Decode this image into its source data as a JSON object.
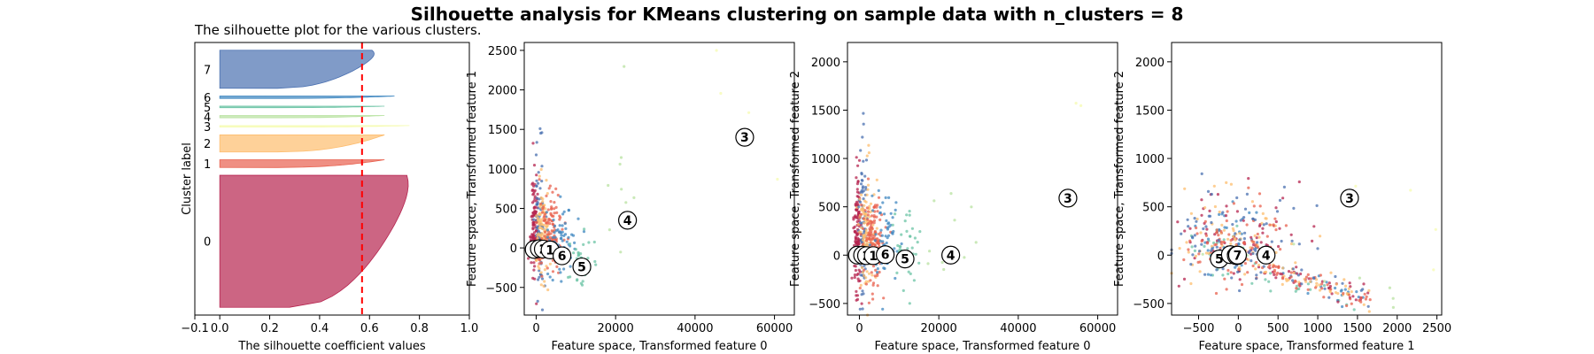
{
  "suptitle": "Silhouette analysis for KMeans clustering on sample data with n_clusters = 8",
  "colors": {
    "c0": "#b6244f",
    "c1": "#e8604e",
    "c2": "#fdbd6e",
    "c3": "#f5fbb0",
    "c4": "#b8e2a0",
    "c5": "#6cc4a5",
    "c6": "#3f87c0",
    "c7": "#4a70b0",
    "avg_line": "#ff0000"
  },
  "chart_data": [
    {
      "type": "area",
      "title": "The silhouette plot for the various clusters.",
      "xlabel": "The silhouette coefficient values",
      "ylabel": "Cluster label",
      "xlim": [
        -0.1,
        1.0
      ],
      "xticks": [
        "−0.1",
        "0.0",
        "0.2",
        "0.4",
        "0.6",
        "0.8",
        "1.0"
      ],
      "average_silhouette": 0.57,
      "clusters": [
        {
          "label": "0",
          "size": 170,
          "max_coef": 0.8
        },
        {
          "label": "1",
          "size": 10,
          "max_coef": 0.66
        },
        {
          "label": "2",
          "size": 22,
          "max_coef": 0.66
        },
        {
          "label": "3",
          "size": 2,
          "max_coef": 0.76
        },
        {
          "label": "4",
          "size": 3,
          "max_coef": 0.66
        },
        {
          "label": "5",
          "size": 2,
          "max_coef": 0.66
        },
        {
          "label": "6",
          "size": 3,
          "max_coef": 0.7
        },
        {
          "label": "7",
          "size": 49,
          "max_coef": 0.66
        }
      ]
    },
    {
      "type": "scatter",
      "xlabel": "Feature space, Transformed feature 0",
      "ylabel": "Feature space, Transformed feature 1",
      "xlim": [
        -3000,
        65000
      ],
      "ylim": [
        -850,
        2600
      ],
      "xticks": [
        0,
        20000,
        40000,
        60000
      ],
      "yticks": [
        -500,
        0,
        500,
        1000,
        1500,
        2000,
        2500
      ],
      "centers": [
        {
          "label": "0",
          "x": -500,
          "y": -20
        },
        {
          "label": "7",
          "x": 800,
          "y": -10
        },
        {
          "label": "2",
          "x": 1800,
          "y": -15
        },
        {
          "label": "1",
          "x": 3500,
          "y": -25
        },
        {
          "label": "6",
          "x": 6500,
          "y": -100
        },
        {
          "label": "5",
          "x": 11500,
          "y": -240
        },
        {
          "label": "4",
          "x": 23000,
          "y": 350
        },
        {
          "label": "3",
          "x": 52500,
          "y": 1400
        }
      ]
    },
    {
      "type": "scatter",
      "xlabel": "Feature space, Transformed feature 0",
      "ylabel": "Feature space, Transformed feature 2",
      "xlim": [
        -3000,
        65000
      ],
      "ylim": [
        -620,
        2200
      ],
      "xticks": [
        0,
        20000,
        40000,
        60000
      ],
      "yticks": [
        -500,
        0,
        500,
        1000,
        1500,
        2000
      ],
      "centers": [
        {
          "label": "0",
          "x": -500,
          "y": 0
        },
        {
          "label": "7",
          "x": 800,
          "y": 0
        },
        {
          "label": "2",
          "x": 1800,
          "y": -5
        },
        {
          "label": "1",
          "x": 3500,
          "y": -5
        },
        {
          "label": "6",
          "x": 6500,
          "y": 5
        },
        {
          "label": "5",
          "x": 11500,
          "y": -40
        },
        {
          "label": "4",
          "x": 23000,
          "y": 0
        },
        {
          "label": "3",
          "x": 52500,
          "y": 590
        }
      ]
    },
    {
      "type": "scatter",
      "xlabel": "Feature space, Transformed feature 1",
      "ylabel": "Feature space, Transformed feature 2",
      "xlim": [
        -840,
        2560
      ],
      "ylim": [
        -620,
        2200
      ],
      "xticks": [
        -500,
        0,
        500,
        1000,
        1500,
        2000,
        2500
      ],
      "yticks": [
        -500,
        0,
        500,
        1000,
        1500,
        2000
      ],
      "centers": [
        {
          "label": "5",
          "x": -240,
          "y": -40
        },
        {
          "label": "6",
          "x": -100,
          "y": 5
        },
        {
          "label": "0",
          "x": -20,
          "y": 0
        },
        {
          "label": "2",
          "x": -15,
          "y": -5
        },
        {
          "label": "1",
          "x": -25,
          "y": -5
        },
        {
          "label": "7",
          "x": -10,
          "y": 0
        },
        {
          "label": "4",
          "x": 350,
          "y": 0
        },
        {
          "label": "3",
          "x": 1400,
          "y": 590
        }
      ]
    }
  ]
}
